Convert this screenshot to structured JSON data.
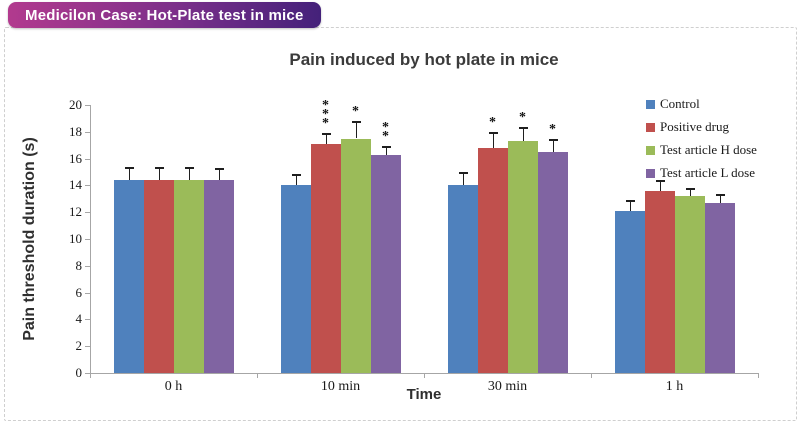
{
  "header": {
    "badge": "Medicilon Case: Hot-Plate test in mice"
  },
  "chart_data": {
    "type": "bar",
    "title": "Pain induced by hot plate in mice",
    "xlabel": "Time",
    "ylabel": "Pain threshold duration (s)",
    "ylim": [
      0,
      20
    ],
    "ytick_step": 2,
    "grid": false,
    "legend_position": "upper-right",
    "error_bars": true,
    "categories": [
      "0 h",
      "10 min",
      "30 min",
      "1 h"
    ],
    "series": [
      {
        "name": "Control",
        "color": "#4f81bd",
        "values": [
          14.4,
          14.0,
          14.0,
          12.1
        ],
        "errors": [
          0.9,
          0.8,
          0.9,
          0.7
        ],
        "significance": [
          "",
          "",
          "",
          ""
        ]
      },
      {
        "name": "Positive drug",
        "color": "#c0504d",
        "values": [
          14.4,
          17.1,
          16.8,
          13.6
        ],
        "errors": [
          0.9,
          0.7,
          1.1,
          0.7
        ],
        "significance": [
          "",
          "***",
          "*",
          ""
        ]
      },
      {
        "name": "Test article H dose",
        "color": "#9bbb59",
        "values": [
          14.4,
          17.5,
          17.3,
          13.2
        ],
        "errors": [
          0.9,
          1.2,
          1.0,
          0.5
        ],
        "significance": [
          "",
          "*",
          "*",
          ""
        ]
      },
      {
        "name": "Test article L dose",
        "color": "#8064a2",
        "values": [
          14.4,
          16.3,
          16.5,
          12.7
        ],
        "errors": [
          0.8,
          0.6,
          0.9,
          0.6
        ],
        "significance": [
          "",
          "**",
          "*",
          ""
        ]
      }
    ]
  }
}
